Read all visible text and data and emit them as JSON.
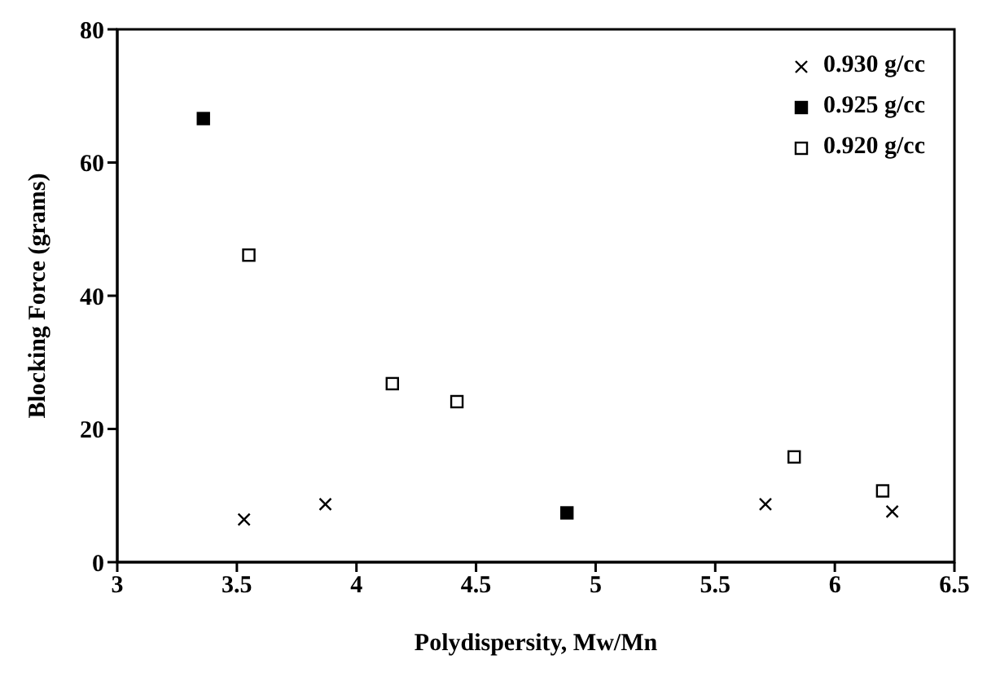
{
  "chart_data": {
    "type": "scatter",
    "xlabel": "Polydispersity, Mw/Mn",
    "ylabel": "Blocking Force (grams)",
    "xlim": [
      3,
      6.5
    ],
    "xticks": [
      3,
      3.5,
      4,
      4.5,
      5,
      5.5,
      6,
      6.5
    ],
    "ylim": [
      0,
      80
    ],
    "yticks": [
      0,
      20,
      40,
      60,
      80
    ],
    "grid": false,
    "legend": "top right",
    "series": [
      {
        "name": "0.930 g/cc",
        "color": "#000000",
        "marker": "cross",
        "x": [
          3.53,
          3.87,
          5.71,
          6.24
        ],
        "values": [
          6.4,
          8.7,
          8.7,
          7.6
        ]
      },
      {
        "name": "0.925 g/cc",
        "color": "#000000",
        "marker": "square",
        "x": [
          3.36,
          4.88
        ],
        "values": [
          66.6,
          7.4
        ]
      },
      {
        "name": "0.920 g/cc",
        "color": "#ffffff",
        "marker": "square",
        "x": [
          3.55,
          4.15,
          4.42,
          5.83,
          6.2
        ],
        "values": [
          46.1,
          26.8,
          24.1,
          15.8,
          10.7
        ]
      }
    ]
  }
}
